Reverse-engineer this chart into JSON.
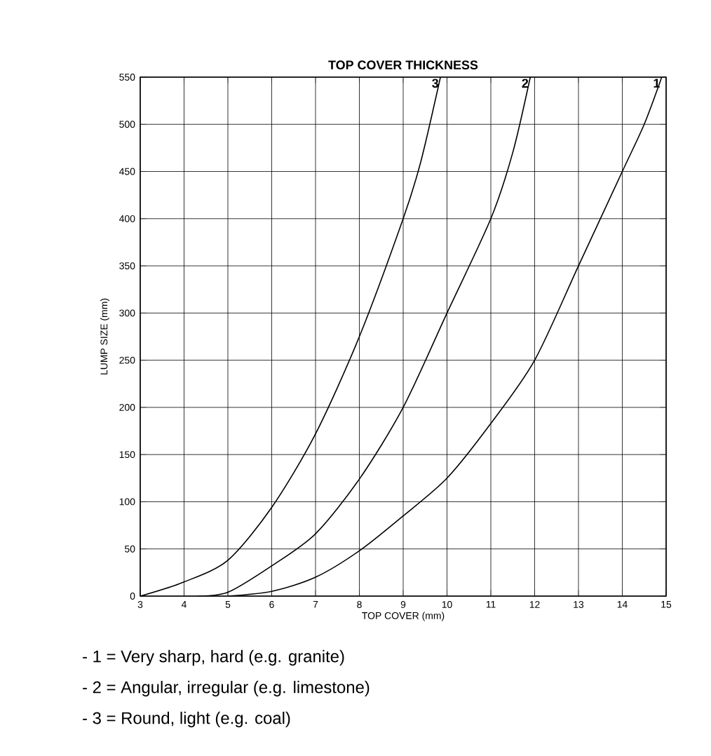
{
  "chart_data": {
    "type": "line",
    "title": "TOP COVER THICKNESS",
    "xlabel": "TOP COVER (mm)",
    "ylabel": "LUMP SIZE (mm)",
    "xlim": [
      3,
      15
    ],
    "ylim": [
      0,
      550
    ],
    "xticks": [
      3,
      4,
      5,
      6,
      7,
      8,
      9,
      10,
      11,
      12,
      13,
      14,
      15
    ],
    "yticks": [
      0,
      50,
      100,
      150,
      200,
      250,
      300,
      350,
      400,
      450,
      500,
      550
    ],
    "grid": true,
    "legend": "top",
    "marker": "none",
    "line_style": "solid",
    "series": [
      {
        "name": "1",
        "color": "#000000",
        "x": [
          5,
          6,
          7,
          8,
          9,
          10,
          11,
          12,
          13,
          14,
          14.5,
          14.9
        ],
        "values": [
          0,
          5,
          20,
          48,
          85,
          125,
          183,
          250,
          350,
          450,
          500,
          550
        ]
      },
      {
        "name": "2",
        "color": "#000000",
        "x": [
          4.3,
          5,
          6,
          7,
          8,
          9,
          10,
          11,
          11.5,
          11.9
        ],
        "values": [
          0,
          4,
          32,
          66,
          124,
          200,
          300,
          400,
          470,
          550
        ]
      },
      {
        "name": "3",
        "color": "#000000",
        "x": [
          3,
          4,
          5,
          6,
          7,
          8,
          9,
          9.4,
          9.85
        ],
        "values": [
          0,
          15,
          38,
          94,
          172,
          275,
          400,
          460,
          550
        ]
      }
    ],
    "annotations": [
      "- 1 = Very sharp, hard (e.g. granite)",
      "- 2 = Angular, irregular (e.g. limestone)",
      "- 3 = Round, light (e.g. coal)"
    ]
  }
}
